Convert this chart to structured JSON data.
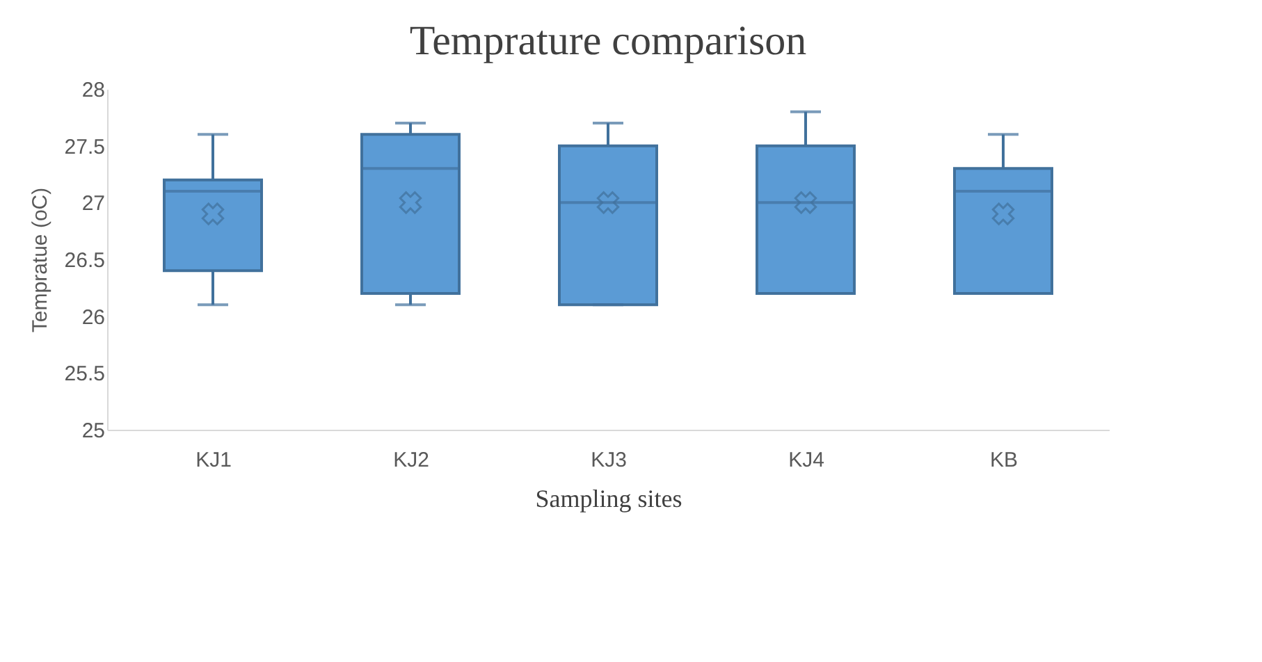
{
  "chart_data": {
    "type": "box",
    "title": "Temprature comparison",
    "xlabel": "Sampling sites",
    "ylabel": "Tempratue (oC)",
    "categories": [
      "KJ1",
      "KJ2",
      "KJ3",
      "KJ4",
      "KB"
    ],
    "boxes": [
      {
        "low": 26.1,
        "q1": 26.4,
        "median": 27.1,
        "q3": 27.2,
        "high": 27.6,
        "mean": 26.9
      },
      {
        "low": 26.1,
        "q1": 26.2,
        "median": 27.3,
        "q3": 27.6,
        "high": 27.7,
        "mean": 27.0
      },
      {
        "low": 26.1,
        "q1": 26.1,
        "median": 27.0,
        "q3": 27.5,
        "high": 27.7,
        "mean": 27.0
      },
      {
        "low": 26.2,
        "q1": 26.2,
        "median": 27.0,
        "q3": 27.5,
        "high": 27.8,
        "mean": 27.0
      },
      {
        "low": 26.2,
        "q1": 26.2,
        "median": 27.1,
        "q3": 27.3,
        "high": 27.6,
        "mean": 26.9
      }
    ],
    "color": "#5b9bd5",
    "ylim": [
      25,
      28
    ],
    "yticks": [
      25,
      25.5,
      26,
      26.5,
      27,
      27.5,
      28
    ],
    "grid": false,
    "marker": "cross"
  }
}
